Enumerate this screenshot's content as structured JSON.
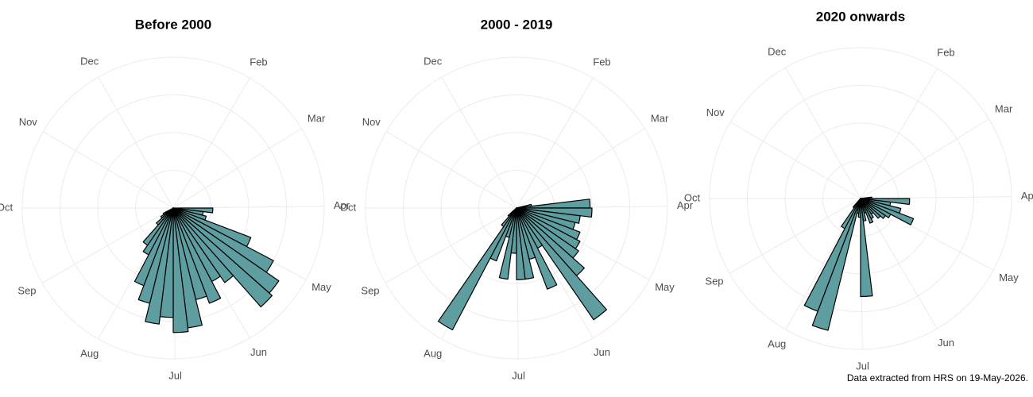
{
  "chart_data": [
    {
      "type": "rose",
      "title": "Before 2000",
      "x": [
        14,
        15,
        16,
        17,
        18,
        19,
        20,
        21,
        22,
        23,
        24,
        25,
        26,
        27,
        28,
        29,
        30,
        31,
        32,
        33,
        34,
        35
      ],
      "values": [
        10.5,
        8,
        9,
        22,
        30,
        34,
        35,
        24,
        22,
        27,
        25,
        32,
        33,
        29,
        31,
        26,
        22,
        14,
        12,
        6,
        4,
        3
      ],
      "color": "#5f9ea0",
      "edgecolor": "#000000",
      "xlim": [
        0,
        52
      ],
      "xticks": [
        {
          "value": 4.4,
          "label": "Feb"
        },
        {
          "value": 8.4,
          "label": "Mar"
        },
        {
          "value": 12.9,
          "label": "Apr"
        },
        {
          "value": 17.1,
          "label": "May"
        },
        {
          "value": 21.6,
          "label": "Jun"
        },
        {
          "value": 25.9,
          "label": "Jul"
        },
        {
          "value": 30.3,
          "label": "Aug"
        },
        {
          "value": 34.7,
          "label": "Sep"
        },
        {
          "value": 39,
          "label": "Oct"
        },
        {
          "value": 43.4,
          "label": "Nov"
        },
        {
          "value": 47.7,
          "label": "Dec"
        }
      ],
      "ylim": [
        0,
        40
      ],
      "yticks": [
        10,
        20,
        30,
        40
      ],
      "grid": true
    },
    {
      "type": "rose",
      "title": "2000 - 2019",
      "x": [
        12,
        13,
        14,
        15,
        16,
        17,
        18,
        19,
        20,
        21,
        22,
        23,
        24,
        25,
        26,
        27,
        28,
        29,
        30,
        31,
        32,
        33
      ],
      "values": [
        4,
        19.5,
        20,
        17,
        16,
        18,
        19,
        20,
        24,
        36,
        12,
        23,
        14,
        19,
        19,
        12,
        19,
        8,
        15,
        36.5,
        6,
        3
      ],
      "color": "#5f9ea0",
      "edgecolor": "#000000",
      "xlim": [
        0,
        52
      ],
      "xticks": [
        {
          "value": 4.4,
          "label": "Feb"
        },
        {
          "value": 8.4,
          "label": "Mar"
        },
        {
          "value": 12.9,
          "label": "Apr"
        },
        {
          "value": 17.1,
          "label": "May"
        },
        {
          "value": 21.6,
          "label": "Jun"
        },
        {
          "value": 25.9,
          "label": "Jul"
        },
        {
          "value": 30.3,
          "label": "Aug"
        },
        {
          "value": 34.7,
          "label": "Sep"
        },
        {
          "value": 39,
          "label": "Oct"
        },
        {
          "value": 43.4,
          "label": "Nov"
        },
        {
          "value": 47.7,
          "label": "Dec"
        }
      ],
      "ylim": [
        0,
        40
      ],
      "yticks": [
        10,
        20,
        30,
        40
      ],
      "grid": true
    },
    {
      "type": "rose",
      "title": "2020 onwards",
      "x": [
        13,
        14,
        15,
        16,
        17,
        18,
        19,
        20,
        21,
        22,
        23,
        24,
        25,
        26,
        27,
        28,
        29,
        30,
        31,
        32
      ],
      "values": [
        3,
        13,
        8,
        11,
        15,
        9,
        8,
        7,
        5,
        6,
        7,
        4,
        6,
        26,
        5,
        4,
        36,
        32,
        9,
        3
      ],
      "color": "#5f9ea0",
      "edgecolor": "#000000",
      "xlim": [
        0,
        52
      ],
      "xticks": [
        {
          "value": 4.4,
          "label": "Feb"
        },
        {
          "value": 8.4,
          "label": "Mar"
        },
        {
          "value": 12.9,
          "label": "Apr"
        },
        {
          "value": 17.1,
          "label": "May"
        },
        {
          "value": 21.6,
          "label": "Jun"
        },
        {
          "value": 25.9,
          "label": "Jul"
        },
        {
          "value": 30.3,
          "label": "Aug"
        },
        {
          "value": 34.7,
          "label": "Sep"
        },
        {
          "value": 39,
          "label": "Oct"
        },
        {
          "value": 43.4,
          "label": "Nov"
        },
        {
          "value": 47.7,
          "label": "Dec"
        }
      ],
      "ylim": [
        0,
        40
      ],
      "yticks": [
        10,
        20,
        30,
        40
      ],
      "grid": true
    }
  ],
  "caption": "Data extracted from HRS on 19-May-2026."
}
